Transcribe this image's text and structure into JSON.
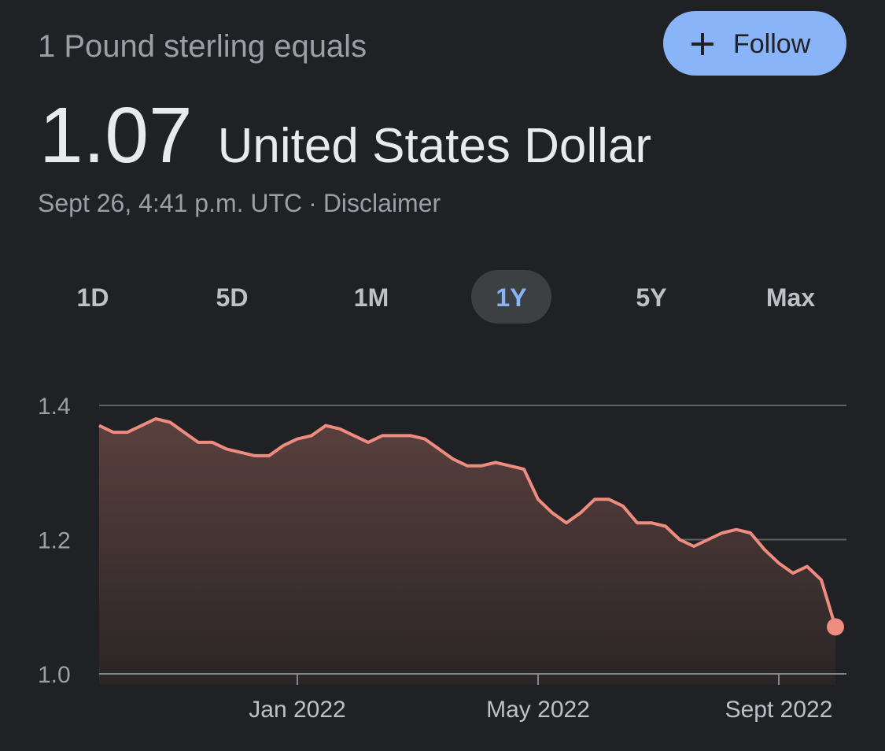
{
  "header": {
    "subtitle": "1 Pound sterling equals",
    "follow_button": "Follow",
    "value": "1.07",
    "unit": "United States Dollar",
    "timestamp": "Sept 26, 4:41 p.m. UTC",
    "separator": "·",
    "disclaimer": "Disclaimer"
  },
  "ranges": {
    "options": [
      "1D",
      "5D",
      "1M",
      "1Y",
      "5Y",
      "Max"
    ],
    "selected": "1Y"
  },
  "chart_data": {
    "type": "area",
    "color": "#ee8c80",
    "categories": [
      null,
      null,
      null,
      null,
      null,
      null,
      null,
      null,
      null,
      null,
      null,
      null,
      null,
      null,
      "Jan 2022",
      null,
      null,
      null,
      null,
      null,
      null,
      null,
      null,
      null,
      null,
      null,
      null,
      null,
      null,
      null,
      null,
      "May 2022",
      null,
      null,
      null,
      null,
      null,
      null,
      null,
      null,
      null,
      null,
      null,
      null,
      null,
      null,
      null,
      null,
      "Sept 2022",
      null,
      null,
      null,
      null
    ],
    "values": [
      1.37,
      1.36,
      1.36,
      1.37,
      1.38,
      1.375,
      1.36,
      1.345,
      1.345,
      1.335,
      1.33,
      1.325,
      1.325,
      1.34,
      1.35,
      1.355,
      1.37,
      1.365,
      1.355,
      1.345,
      1.355,
      1.355,
      1.355,
      1.35,
      1.335,
      1.32,
      1.31,
      1.31,
      1.315,
      1.31,
      1.305,
      1.26,
      1.24,
      1.225,
      1.24,
      1.26,
      1.26,
      1.25,
      1.225,
      1.225,
      1.22,
      1.2,
      1.19,
      1.2,
      1.21,
      1.215,
      1.21,
      1.185,
      1.165,
      1.15,
      1.16,
      1.14,
      1.07
    ],
    "ylim": [
      1.0,
      1.4
    ],
    "yticks": [
      {
        "value": 1.0,
        "label": "1.0"
      },
      1.2,
      1.4
    ],
    "grid": true
  }
}
